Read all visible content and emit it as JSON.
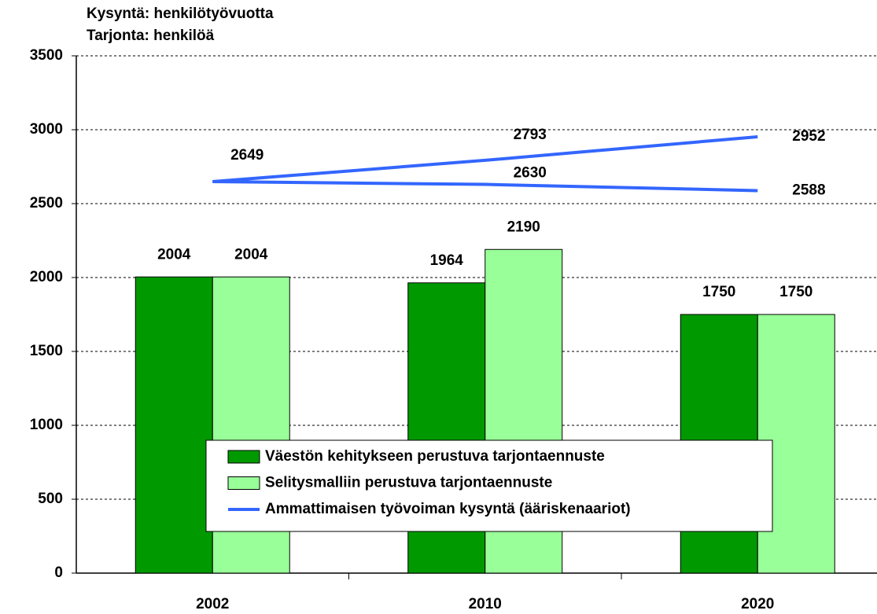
{
  "chart_data": {
    "type": "bar",
    "ylabel": [
      "Kysyntä: henkilötyövuotta",
      "Tarjonta: henkilöä"
    ],
    "categories": [
      "2002",
      "2010",
      "2020"
    ],
    "series": [
      {
        "name": "Väestön kehitykseen perustuva tarjontaennuste",
        "type": "bar",
        "color": "#009900",
        "values": [
          2004,
          1964,
          1750
        ]
      },
      {
        "name": "Selitysmalliin perustuva tarjontaennuste",
        "type": "bar",
        "color": "#99ff99",
        "values": [
          2004,
          2190,
          1750
        ]
      },
      {
        "name": "Ammattimaisen työvoiman kysyntä (ääriskenaariot)",
        "type": "line",
        "color": "#3366ff",
        "values": [
          2649,
          2793,
          2952
        ]
      },
      {
        "type": "line",
        "color": "#3366ff",
        "values": [
          2649,
          2630,
          2588
        ]
      }
    ],
    "ylim": [
      0,
      3500
    ],
    "yticks": [
      0,
      500,
      1000,
      1500,
      2000,
      2500,
      3000,
      3500
    ],
    "grid": true
  }
}
